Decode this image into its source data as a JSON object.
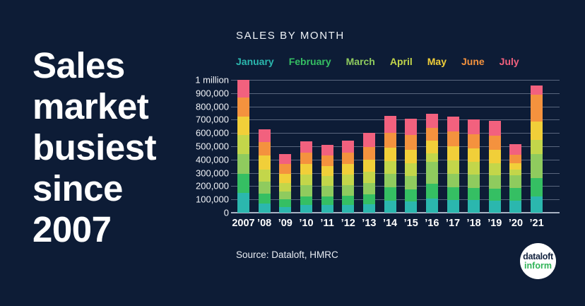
{
  "background": "#0d1c36",
  "headline": {
    "lines": [
      "Sales",
      "market",
      "busiest",
      "since",
      "2007"
    ]
  },
  "chart": {
    "title": "SALES BY MONTH"
  },
  "source": {
    "text": "Source: Dataloft, HMRC"
  },
  "logo": {
    "line1": "dataloft",
    "line2": "inform",
    "circle_color": "#ffffff",
    "line1_color": "#13233f",
    "line2_color": "#2fb457"
  },
  "chart_data": {
    "type": "bar",
    "stacked": true,
    "title": "SALES BY MONTH",
    "grid": true,
    "legend_position": "top",
    "xlabel": "",
    "ylabel": "",
    "ylim": [
      0,
      1000000
    ],
    "categories": [
      "2007",
      "’08",
      "’09",
      "’10",
      "’11",
      "’12",
      "’13",
      "’14",
      "’15",
      "’16",
      "’17",
      "’18",
      "’19",
      "’20",
      "’21"
    ],
    "series": [
      {
        "name": "January",
        "color": "#2bb7ae",
        "values": [
          150000,
          70000,
          45000,
          60000,
          60000,
          60000,
          65000,
          90000,
          85000,
          105000,
          95000,
          95000,
          90000,
          90000,
          120000
        ]
      },
      {
        "name": "February",
        "color": "#35bf63",
        "values": [
          145000,
          75000,
          55000,
          65000,
          65000,
          70000,
          75000,
          100000,
          90000,
          115000,
          95000,
          90000,
          90000,
          95000,
          140000
        ]
      },
      {
        "name": "March",
        "color": "#8fcb5e",
        "values": [
          145000,
          90000,
          60000,
          80000,
          75000,
          80000,
          85000,
          105000,
          100000,
          165000,
          105000,
          100000,
          100000,
          95000,
          180000
        ]
      },
      {
        "name": "April",
        "color": "#c3d64a",
        "values": [
          145000,
          90000,
          65000,
          80000,
          75000,
          75000,
          85000,
          95000,
          100000,
          60000,
          100000,
          100000,
          95000,
          45000,
          110000
        ]
      },
      {
        "name": "May",
        "color": "#f1cf39",
        "values": [
          140000,
          105000,
          70000,
          80000,
          75000,
          80000,
          90000,
          100000,
          100000,
          100000,
          105000,
          100000,
          100000,
          50000,
          135000
        ]
      },
      {
        "name": "June",
        "color": "#f4923e",
        "values": [
          140000,
          100000,
          70000,
          85000,
          80000,
          85000,
          95000,
          110000,
          110000,
          95000,
          110000,
          105000,
          105000,
          60000,
          205000
        ]
      },
      {
        "name": "July",
        "color": "#f2617e",
        "values": [
          135000,
          100000,
          75000,
          85000,
          80000,
          95000,
          105000,
          130000,
          125000,
          105000,
          115000,
          110000,
          110000,
          80000,
          70000
        ]
      }
    ],
    "y_ticks": [
      {
        "value": 0,
        "label": "0"
      },
      {
        "value": 100000,
        "label": "100,000"
      },
      {
        "value": 200000,
        "label": "200,000"
      },
      {
        "value": 300000,
        "label": "300,000"
      },
      {
        "value": 400000,
        "label": "400,000"
      },
      {
        "value": 500000,
        "label": "500,000"
      },
      {
        "value": 600000,
        "label": "600,000"
      },
      {
        "value": 700000,
        "label": "700,000"
      },
      {
        "value": 800000,
        "label": "800,000"
      },
      {
        "value": 900000,
        "label": "900,000"
      },
      {
        "value": 1000000,
        "label": "1 million"
      }
    ],
    "source": "Source: Dataloft, HMRC"
  }
}
